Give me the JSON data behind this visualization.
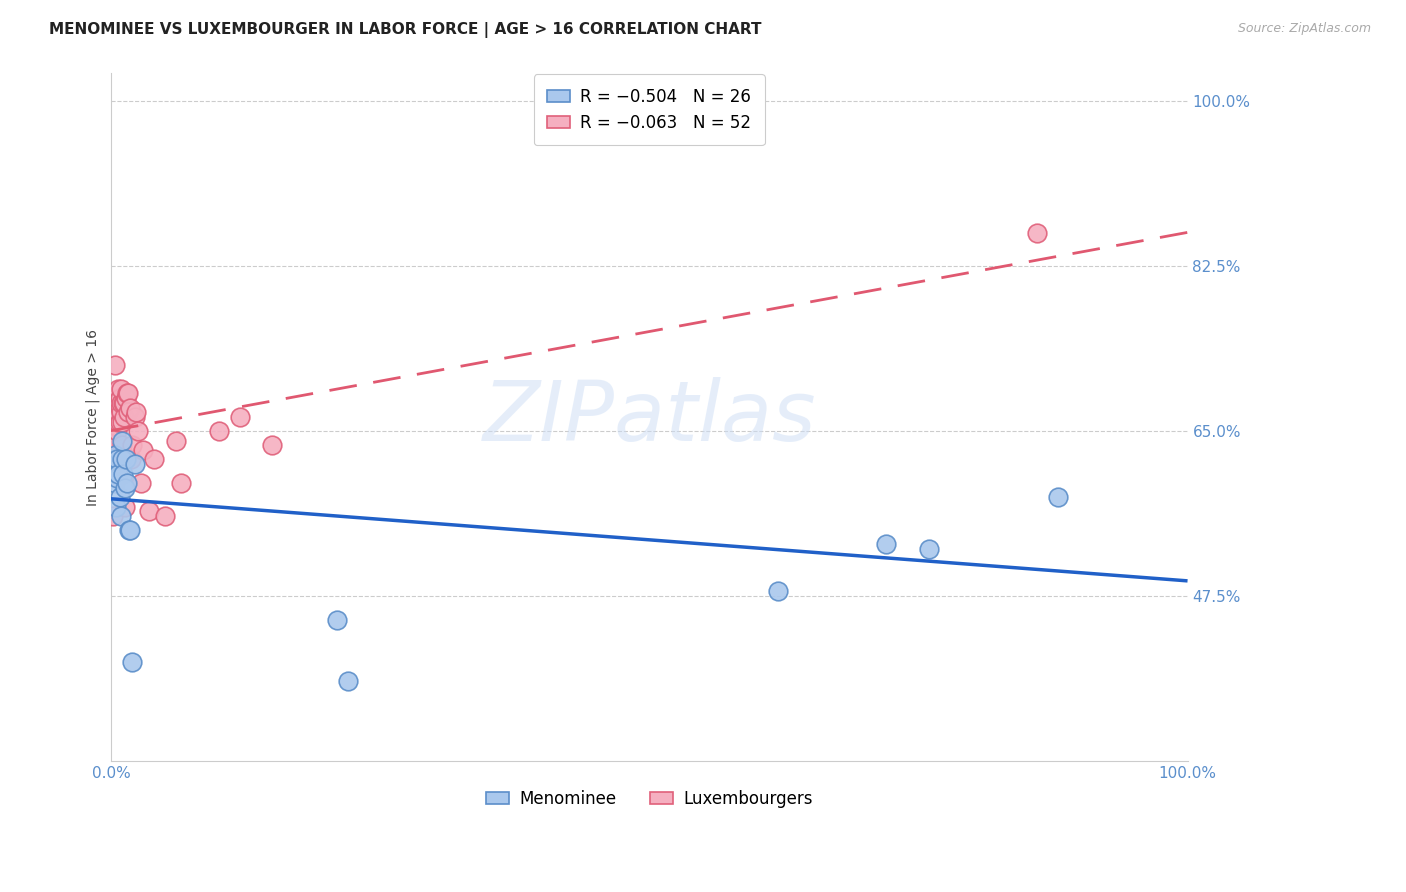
{
  "title": "MENOMINEE VS LUXEMBOURGER IN LABOR FORCE | AGE > 16 CORRELATION CHART",
  "source": "Source: ZipAtlas.com",
  "ylabel": "In Labor Force | Age > 16",
  "xlim": [
    0.0,
    1.0
  ],
  "ylim": [
    0.3,
    1.03
  ],
  "yticks": [
    0.475,
    0.65,
    0.825,
    1.0
  ],
  "ytick_labels": [
    "47.5%",
    "65.0%",
    "82.5%",
    "100.0%"
  ],
  "menominee_x": [
    0.003,
    0.004,
    0.004,
    0.005,
    0.005,
    0.006,
    0.006,
    0.007,
    0.008,
    0.009,
    0.01,
    0.01,
    0.011,
    0.013,
    0.014,
    0.015,
    0.017,
    0.018,
    0.02,
    0.022,
    0.21,
    0.22,
    0.62,
    0.72,
    0.76,
    0.88
  ],
  "menominee_y": [
    0.62,
    0.625,
    0.595,
    0.57,
    0.615,
    0.6,
    0.62,
    0.605,
    0.58,
    0.56,
    0.62,
    0.64,
    0.605,
    0.59,
    0.62,
    0.595,
    0.545,
    0.545,
    0.405,
    0.615,
    0.45,
    0.385,
    0.48,
    0.53,
    0.525,
    0.58
  ],
  "luxembourger_x": [
    0.002,
    0.003,
    0.003,
    0.004,
    0.004,
    0.005,
    0.005,
    0.005,
    0.005,
    0.005,
    0.005,
    0.006,
    0.006,
    0.006,
    0.007,
    0.007,
    0.007,
    0.007,
    0.007,
    0.008,
    0.008,
    0.008,
    0.009,
    0.009,
    0.009,
    0.01,
    0.01,
    0.011,
    0.012,
    0.012,
    0.013,
    0.014,
    0.015,
    0.016,
    0.016,
    0.018,
    0.019,
    0.02,
    0.022,
    0.023,
    0.025,
    0.028,
    0.03,
    0.035,
    0.04,
    0.05,
    0.06,
    0.065,
    0.1,
    0.12,
    0.15,
    0.86
  ],
  "luxembourger_y": [
    0.56,
    0.625,
    0.63,
    0.685,
    0.72,
    0.64,
    0.655,
    0.665,
    0.675,
    0.68,
    0.69,
    0.65,
    0.665,
    0.68,
    0.66,
    0.67,
    0.68,
    0.69,
    0.695,
    0.66,
    0.675,
    0.685,
    0.67,
    0.68,
    0.695,
    0.635,
    0.66,
    0.68,
    0.665,
    0.68,
    0.57,
    0.685,
    0.69,
    0.67,
    0.69,
    0.675,
    0.62,
    0.635,
    0.665,
    0.67,
    0.65,
    0.595,
    0.63,
    0.565,
    0.62,
    0.56,
    0.64,
    0.595,
    0.65,
    0.665,
    0.635,
    0.86
  ],
  "menominee_color": "#aac8ed",
  "luxembourger_color": "#f5afc0",
  "menominee_edge_color": "#5b8ec9",
  "luxembourger_edge_color": "#e0607a",
  "menominee_line_color": "#2060c8",
  "luxembourger_line_color": "#e05870",
  "legend_r1": "R = −0.504",
  "legend_n1": "N = 26",
  "legend_r2": "R = −0.063",
  "legend_n2": "N = 52",
  "legend_label1": "Menominee",
  "legend_label2": "Luxembourgers",
  "watermark": "ZIPatlas",
  "background_color": "#ffffff",
  "grid_color": "#cccccc",
  "axis_label_color": "#5b8fcc",
  "title_color": "#222222",
  "source_color": "#aaaaaa",
  "title_fontsize": 11,
  "label_fontsize": 10,
  "tick_fontsize": 11,
  "marker_size": 180
}
